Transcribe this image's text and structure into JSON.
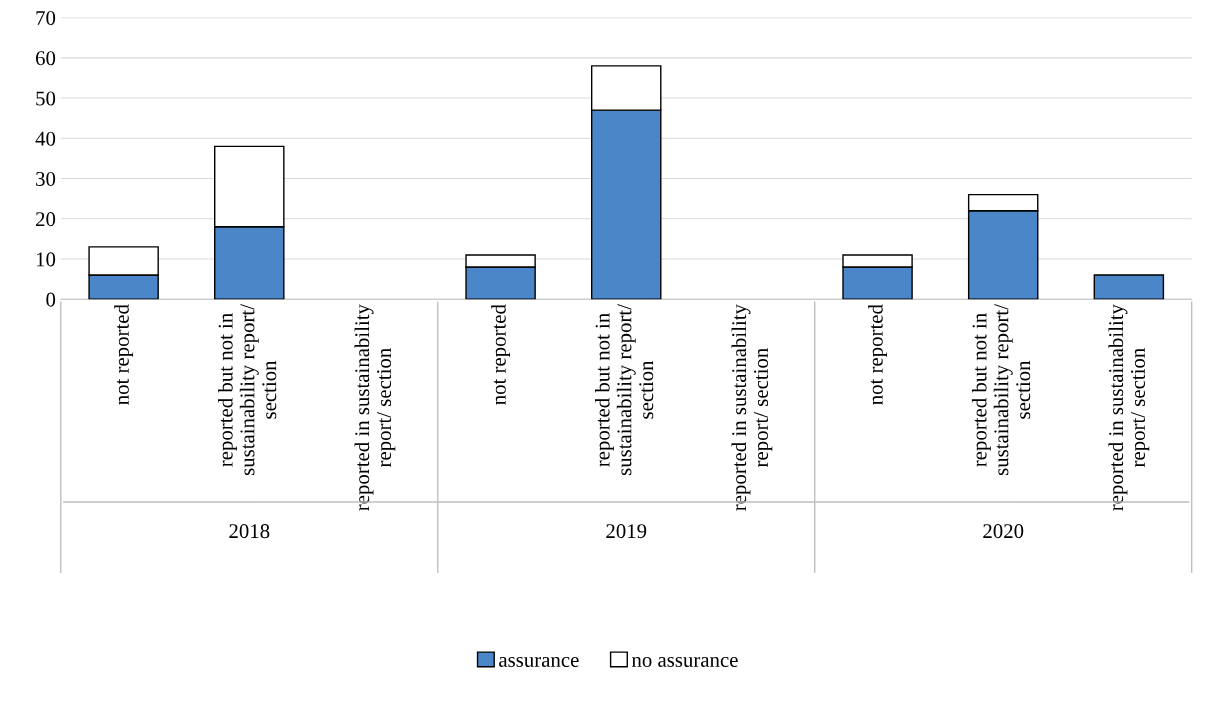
{
  "chart_data": {
    "type": "bar",
    "stacked": true,
    "categories": [
      "not reported",
      "reported but not in\nsustainability report/\nsection",
      "reported in sustainability\nreport/ section",
      "not reported",
      "reported but not in\nsustainability report/\nsection",
      "reported in sustainability\nreport/ section",
      "not reported",
      "reported but not in\nsustainability report/\nsection",
      "reported in sustainability\nreport/ section"
    ],
    "series": [
      {
        "name": "assurance",
        "color": "#4a86c8",
        "values": [
          6,
          18,
          0,
          8,
          47,
          0,
          8,
          22,
          6
        ]
      },
      {
        "name": "no assurance",
        "color": "#ffffff",
        "values": [
          7,
          20,
          0,
          3,
          11,
          0,
          3,
          4,
          0
        ]
      }
    ],
    "annotations": [
      "2018",
      "2019",
      "2020"
    ],
    "ylim": [
      0,
      70
    ],
    "yticks": [
      0,
      10,
      20,
      30,
      40,
      50,
      60,
      70
    ],
    "grid": "y",
    "legend": "bottom"
  }
}
